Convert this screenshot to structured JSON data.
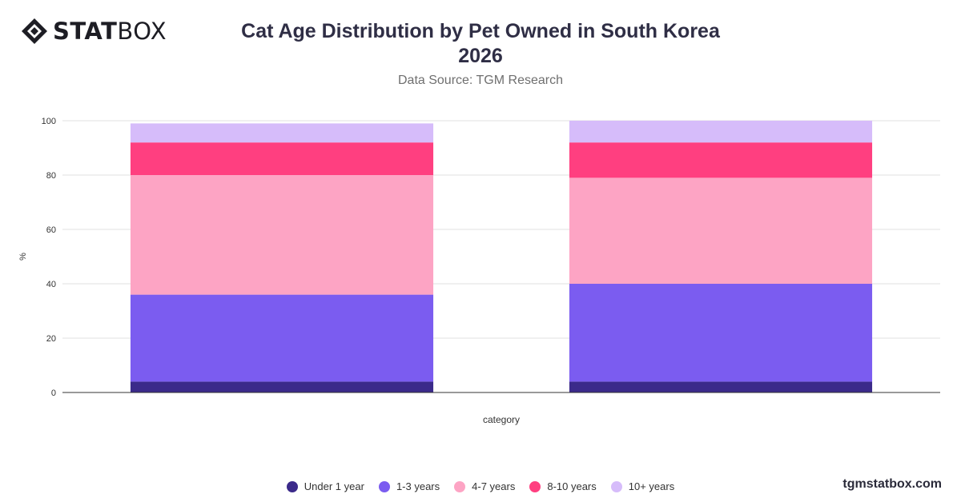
{
  "brand": {
    "bold": "STAT",
    "light": "BOX",
    "icon": "statbox-diamond-logo"
  },
  "header": {
    "title_line1": "Cat Age Distribution by Pet Owned in South Korea",
    "title_line2": "2026",
    "subtitle": "Data Source: TGM Research"
  },
  "footer": {
    "site": "tgmstatbox.com"
  },
  "legend": [
    {
      "label": "Under 1 year",
      "color": "#3b2a8a"
    },
    {
      "label": "1-3 years",
      "color": "#7b5cf0"
    },
    {
      "label": "4-7 years",
      "color": "#fda4c4"
    },
    {
      "label": "8-10 years",
      "color": "#ff3f80"
    },
    {
      "label": "10+ years",
      "color": "#d6bcfa"
    }
  ],
  "chart_data": {
    "type": "bar",
    "stacked": true,
    "categories": [
      "",
      ""
    ],
    "xlabel": "category",
    "ylabel": "%",
    "ylim": [
      0,
      100
    ],
    "yticks": [
      0,
      20,
      40,
      60,
      80,
      100
    ],
    "grid": true,
    "legend_position": "bottom",
    "series": [
      {
        "name": "Under 1 year",
        "color": "#3b2a8a",
        "values": [
          4,
          4
        ]
      },
      {
        "name": "1-3 years",
        "color": "#7b5cf0",
        "values": [
          32,
          36
        ]
      },
      {
        "name": "4-7 years",
        "color": "#fda4c4",
        "values": [
          44,
          39
        ]
      },
      {
        "name": "8-10 years",
        "color": "#ff3f80",
        "values": [
          12,
          13
        ]
      },
      {
        "name": "10+ years",
        "color": "#d6bcfa",
        "values": [
          7,
          8
        ]
      }
    ]
  }
}
